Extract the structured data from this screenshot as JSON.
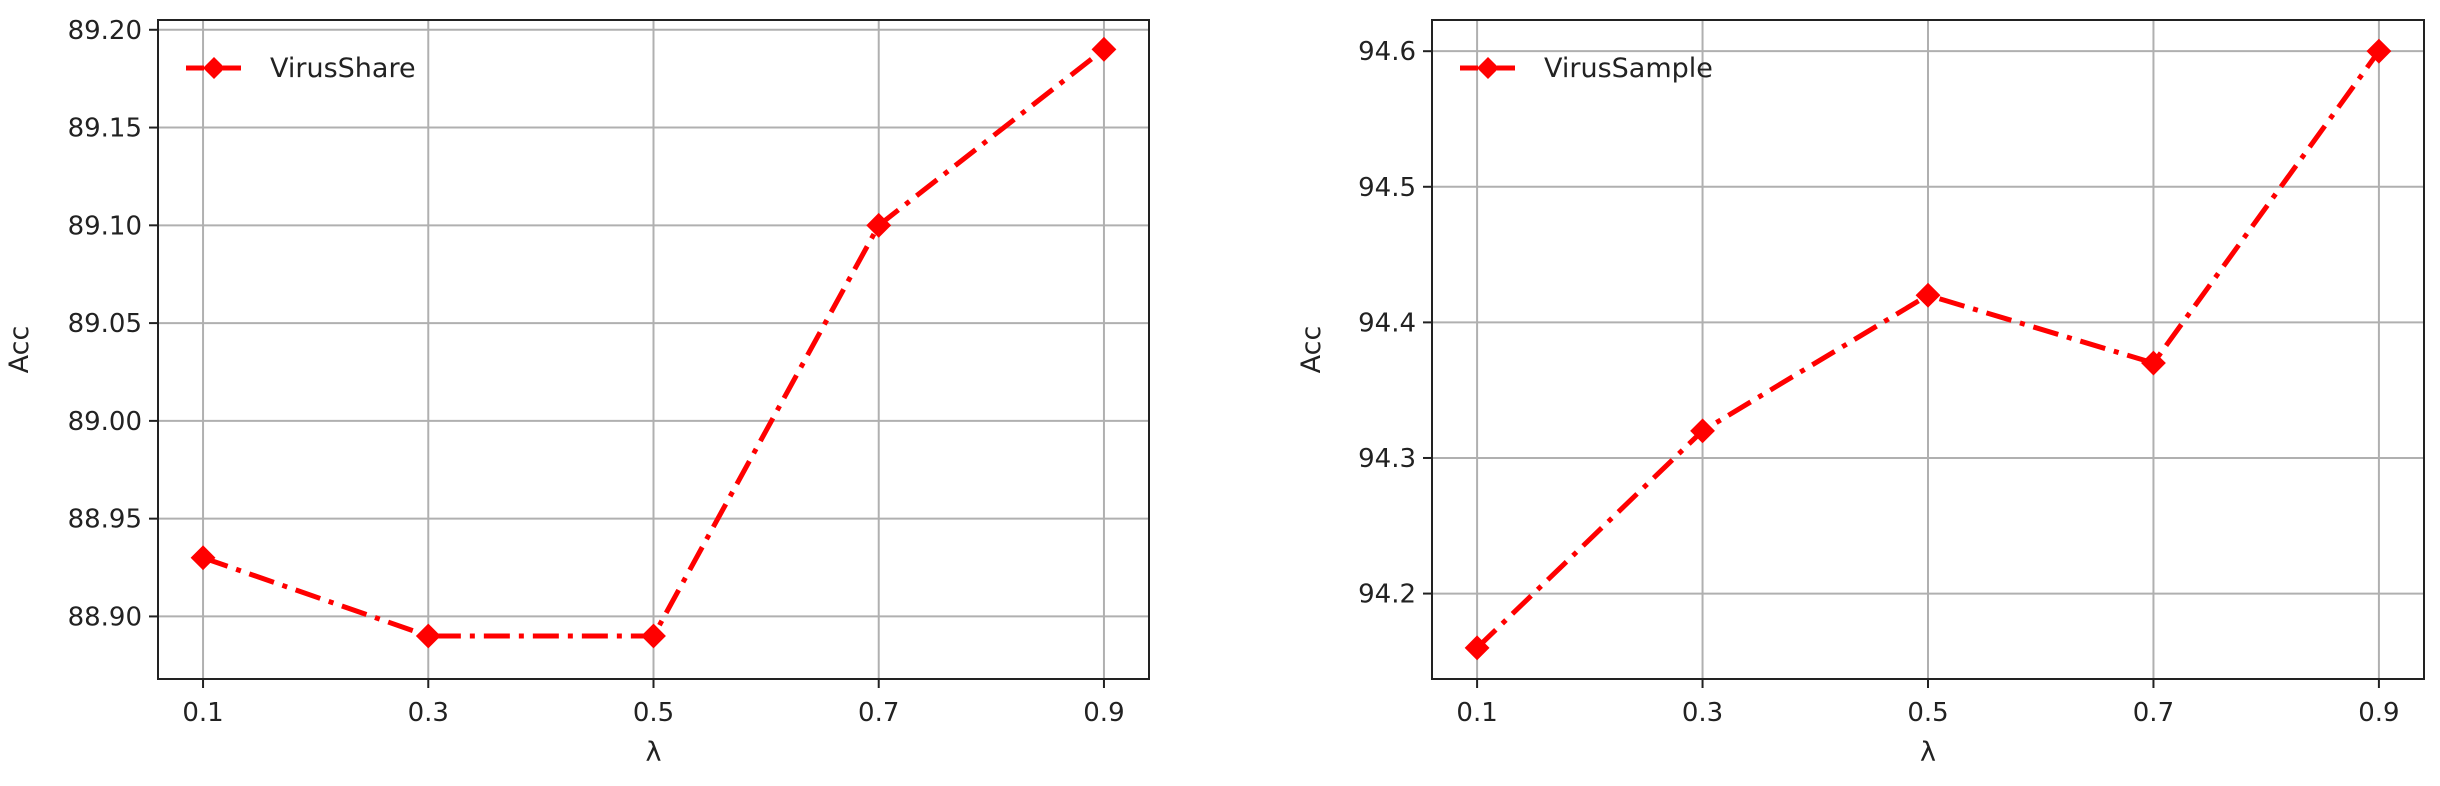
{
  "chart_data": [
    {
      "type": "line",
      "title": "",
      "xlabel": "λ",
      "ylabel": "Acc",
      "x": [
        0.1,
        0.3,
        0.5,
        0.7,
        0.9
      ],
      "x_tick_labels": [
        "0.1",
        "0.3",
        "0.5",
        "0.7",
        "0.9"
      ],
      "y_ticks": [
        88.9,
        88.95,
        89.0,
        89.05,
        89.1,
        89.15,
        89.2
      ],
      "y_tick_labels": [
        "88.90",
        "88.95",
        "89.00",
        "89.05",
        "89.10",
        "89.15",
        "89.20"
      ],
      "ylim": [
        88.868,
        89.205
      ],
      "xlim": [
        0.06,
        0.94
      ],
      "grid": true,
      "legend_position": "top-left",
      "series": [
        {
          "name": "VirusShare",
          "values": [
            88.93,
            88.89,
            88.89,
            89.1,
            89.19
          ],
          "color": "#ff0000",
          "marker": "diamond",
          "line_style": "dash-dot"
        }
      ]
    },
    {
      "type": "line",
      "title": "",
      "xlabel": "λ",
      "ylabel": "Acc",
      "x": [
        0.1,
        0.3,
        0.5,
        0.7,
        0.9
      ],
      "x_tick_labels": [
        "0.1",
        "0.3",
        "0.5",
        "0.7",
        "0.9"
      ],
      "y_ticks": [
        94.2,
        94.3,
        94.4,
        94.5,
        94.6
      ],
      "y_tick_labels": [
        "94.2",
        "94.3",
        "94.4",
        "94.5",
        "94.6"
      ],
      "ylim": [
        94.137,
        94.623
      ],
      "xlim": [
        0.06,
        0.94
      ],
      "grid": true,
      "legend_position": "top-left",
      "series": [
        {
          "name": "VirusSample",
          "values": [
            94.16,
            94.32,
            94.42,
            94.37,
            94.6
          ],
          "color": "#ff0000",
          "marker": "diamond",
          "line_style": "dash-dot"
        }
      ]
    }
  ]
}
